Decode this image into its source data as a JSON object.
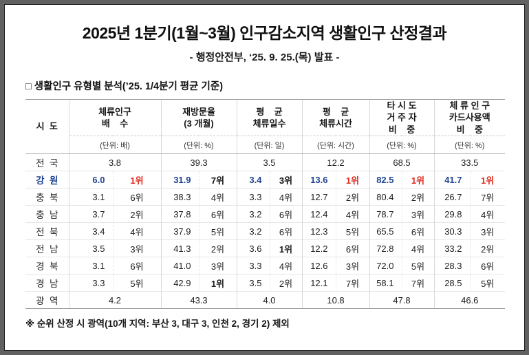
{
  "page": {
    "title": "2025년 1분기(1월~3월) 인구감소지역 생활인구 산정결과",
    "subtitle": "- 행정안전부, ‘25. 9. 25.(목) 발표 -",
    "section_title": "□ 생활인구 유형별 분석(’25. 1/4분기 평균 기준)",
    "footnote": "※ 순위 산정 시 광역(10개 지역: 부산 3, 대구 3, 인천 2, 경기 2) 제외"
  },
  "colors": {
    "highlight-blue": "#1e4390",
    "rank1-red": "#e02a1e",
    "frame-gray": "#616161"
  },
  "table": {
    "row_header_label": "시  도",
    "columns": [
      {
        "label": "체류인구\n배    수",
        "unit": "(단위: 배)"
      },
      {
        "label": "재방문율\n(3 개월)",
        "unit": "(단위: %)"
      },
      {
        "label": "평    균\n체류일수",
        "unit": "(단위: 일)"
      },
      {
        "label": "평    균\n체류시간",
        "unit": "(단위: 시간)"
      },
      {
        "label": "타 시 도\n거 주 자\n비    중",
        "unit": "(단위: %)"
      },
      {
        "label": "체 류 인 구\n카드사용액\n비    중",
        "unit": "(단위: %)"
      }
    ],
    "rows": [
      {
        "region": "전  국",
        "type": "summary",
        "values": [
          "3.8",
          "39.3",
          "3.5",
          "12.2",
          "68.5",
          "33.5"
        ]
      },
      {
        "region": "강  원",
        "type": "highlight",
        "cells": [
          [
            "6.0",
            "1위"
          ],
          [
            "31.9",
            "7위"
          ],
          [
            "3.4",
            "3위"
          ],
          [
            "13.6",
            "1위"
          ],
          [
            "82.5",
            "1위"
          ],
          [
            "41.7",
            "1위"
          ]
        ]
      },
      {
        "region": "충  북",
        "cells": [
          [
            "3.1",
            "6위"
          ],
          [
            "38.3",
            "4위"
          ],
          [
            "3.3",
            "4위"
          ],
          [
            "12.7",
            "2위"
          ],
          [
            "80.4",
            "2위"
          ],
          [
            "26.7",
            "7위"
          ]
        ]
      },
      {
        "region": "충  남",
        "cells": [
          [
            "3.7",
            "2위"
          ],
          [
            "37.8",
            "6위"
          ],
          [
            "3.2",
            "6위"
          ],
          [
            "12.4",
            "4위"
          ],
          [
            "78.7",
            "3위"
          ],
          [
            "29.8",
            "4위"
          ]
        ]
      },
      {
        "region": "전  북",
        "cells": [
          [
            "3.4",
            "4위"
          ],
          [
            "37.9",
            "5위"
          ],
          [
            "3.2",
            "6위"
          ],
          [
            "12.3",
            "5위"
          ],
          [
            "65.5",
            "6위"
          ],
          [
            "30.3",
            "3위"
          ]
        ]
      },
      {
        "region": "전  남",
        "cells": [
          [
            "3.5",
            "3위"
          ],
          [
            "41.3",
            "2위"
          ],
          [
            "3.6",
            "1위"
          ],
          [
            "12.2",
            "6위"
          ],
          [
            "72.8",
            "4위"
          ],
          [
            "33.2",
            "2위"
          ]
        ]
      },
      {
        "region": "경  북",
        "cells": [
          [
            "3.1",
            "6위"
          ],
          [
            "41.0",
            "3위"
          ],
          [
            "3.3",
            "4위"
          ],
          [
            "12.6",
            "3위"
          ],
          [
            "72.0",
            "5위"
          ],
          [
            "28.3",
            "6위"
          ]
        ]
      },
      {
        "region": "경  남",
        "cells": [
          [
            "3.3",
            "5위"
          ],
          [
            "42.9",
            "1위"
          ],
          [
            "3.5",
            "2위"
          ],
          [
            "12.1",
            "7위"
          ],
          [
            "58.1",
            "7위"
          ],
          [
            "28.5",
            "5위"
          ]
        ]
      },
      {
        "region": "광  역",
        "type": "summary",
        "values": [
          "4.2",
          "43.3",
          "4.0",
          "10.8",
          "47.8",
          "46.6"
        ]
      }
    ]
  }
}
